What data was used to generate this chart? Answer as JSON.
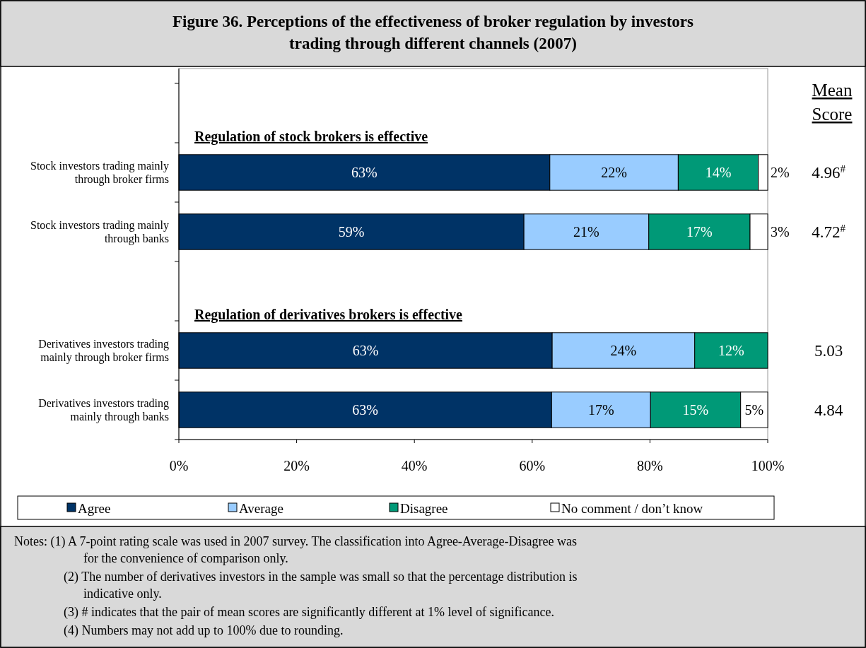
{
  "chart_data": {
    "type": "bar",
    "orientation": "horizontal",
    "stacked": true,
    "title": "Figure 36.    Perceptions of the effectiveness of broker regulation by investors trading through different channels (2007)",
    "categories": [
      null,
      "Stock investors trading mainly through broker firms",
      "Stock investors trading mainly through banks",
      null,
      "Derivatives investors trading mainly through broker firms",
      "Derivatives investors trading mainly through banks"
    ],
    "series": [
      {
        "name": "Agree",
        "color": "#003366",
        "values": [
          null,
          63.0,
          58.6,
          null,
          63.4,
          63.3
        ],
        "value_labels": [
          null,
          "63%",
          "59%",
          null,
          "63%",
          "63%"
        ]
      },
      {
        "name": "Average",
        "color": "#99ccff",
        "values": [
          null,
          21.8,
          21.2,
          null,
          24.2,
          16.8
        ],
        "value_labels": [
          null,
          "22%",
          "21%",
          null,
          "24%",
          "17%"
        ]
      },
      {
        "name": "Disagree",
        "color": "#009977",
        "values": [
          null,
          13.6,
          17.2,
          null,
          12.4,
          15.3
        ],
        "value_labels": [
          null,
          "14%",
          "17%",
          null,
          "12%",
          "15%"
        ]
      },
      {
        "name": "No comment / don’t know",
        "color": "#ffffff",
        "values": [
          null,
          1.6,
          3.0,
          null,
          0,
          4.6
        ],
        "value_labels": [
          null,
          "2%",
          "3%",
          null,
          null,
          "5%"
        ]
      }
    ],
    "xlim": [
      0,
      100
    ],
    "xticks": [
      {
        "value": 0,
        "label": "0%"
      },
      {
        "value": 20,
        "label": "20%"
      },
      {
        "value": 40,
        "label": "40%"
      },
      {
        "value": 60,
        "label": "60%"
      },
      {
        "value": 80,
        "label": "80%"
      },
      {
        "value": 100,
        "label": "100%"
      }
    ],
    "legend": "bottom",
    "annotations": [
      "Regulation of stock brokers is effective",
      "Regulation of derivatives brokers is effective",
      "Mean Score",
      "4.96$^{#}$",
      "4.72$^{#}$",
      "5.03",
      "4.84",
      "Notes: (1) A 7-point rating scale was used in 2007 survey.    The classification into Agree-Average-Disagree was for the convenience of comparison only.",
      "(2) The number of derivatives investors in the sample was small so that the percentage distribution is indicative only.",
      "(3) # indicates that the pair of mean scores are significantly different at 1% level of significance.",
      "(4) Numbers may not add up to 100% due to rounding."
    ]
  }
}
